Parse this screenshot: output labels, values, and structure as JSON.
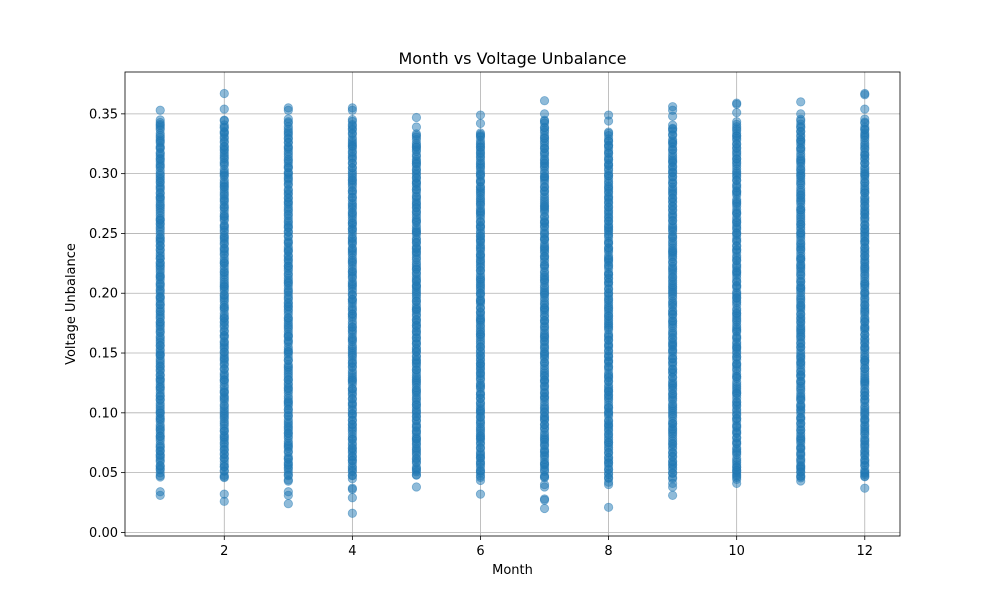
{
  "chart_data": {
    "type": "scatter",
    "title": "Month vs Voltage Unbalance",
    "xlabel": "Month",
    "ylabel": "Voltage Unbalance",
    "xlim": [
      0.45,
      12.55
    ],
    "ylim": [
      -0.003,
      0.385
    ],
    "x_ticks": [
      2,
      4,
      6,
      8,
      10,
      12
    ],
    "x_tick_labels": [
      "2",
      "4",
      "6",
      "8",
      "10",
      "12"
    ],
    "y_ticks": [
      0.0,
      0.05,
      0.1,
      0.15,
      0.2,
      0.25,
      0.3,
      0.35
    ],
    "y_tick_labels": [
      "0.00",
      "0.05",
      "0.10",
      "0.15",
      "0.20",
      "0.25",
      "0.30",
      "0.35"
    ],
    "grid": true,
    "marker_color": "#1f77b4",
    "marker_alpha": 0.5,
    "series": [
      {
        "name": "",
        "monthly_range": [
          {
            "month": 1,
            "dense_min": 0.046,
            "dense_max": 0.345,
            "outliers": [
              0.031,
              0.034,
              0.353
            ]
          },
          {
            "month": 2,
            "dense_min": 0.045,
            "dense_max": 0.345,
            "outliers": [
              0.026,
              0.032,
              0.354,
              0.367
            ]
          },
          {
            "month": 3,
            "dense_min": 0.043,
            "dense_max": 0.345,
            "outliers": [
              0.024,
              0.031,
              0.034,
              0.353,
              0.355
            ]
          },
          {
            "month": 4,
            "dense_min": 0.045,
            "dense_max": 0.345,
            "outliers": [
              0.016,
              0.029,
              0.036,
              0.037,
              0.353,
              0.355
            ]
          },
          {
            "month": 5,
            "dense_min": 0.047,
            "dense_max": 0.333,
            "outliers": [
              0.038,
              0.339,
              0.347
            ]
          },
          {
            "month": 6,
            "dense_min": 0.044,
            "dense_max": 0.335,
            "outliers": [
              0.032,
              0.342,
              0.349
            ]
          },
          {
            "month": 7,
            "dense_min": 0.045,
            "dense_max": 0.345,
            "outliers": [
              0.02,
              0.027,
              0.028,
              0.038,
              0.04,
              0.35,
              0.361
            ]
          },
          {
            "month": 8,
            "dense_min": 0.045,
            "dense_max": 0.335,
            "outliers": [
              0.021,
              0.04,
              0.042,
              0.344,
              0.349
            ]
          },
          {
            "month": 9,
            "dense_min": 0.045,
            "dense_max": 0.34,
            "outliers": [
              0.031,
              0.038,
              0.041,
              0.348,
              0.353,
              0.356
            ]
          },
          {
            "month": 10,
            "dense_min": 0.045,
            "dense_max": 0.343,
            "outliers": [
              0.041,
              0.046,
              0.052,
              0.351,
              0.358,
              0.359
            ]
          },
          {
            "month": 11,
            "dense_min": 0.046,
            "dense_max": 0.345,
            "outliers": [
              0.043,
              0.047,
              0.053,
              0.35,
              0.36
            ]
          },
          {
            "month": 12,
            "dense_min": 0.046,
            "dense_max": 0.345,
            "outliers": [
              0.037,
              0.047,
              0.354,
              0.366,
              0.367
            ]
          }
        ]
      }
    ]
  }
}
